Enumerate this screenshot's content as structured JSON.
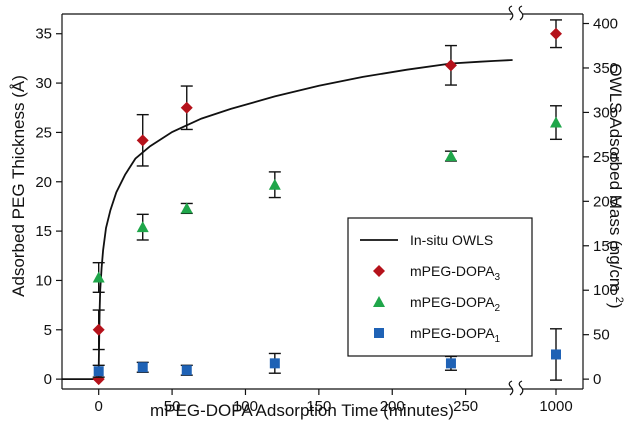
{
  "chart_data": {
    "type": "scatter",
    "xlabel": "mPEG-DOPA Adsorption Time (minutes)",
    "ylabel": "Adsorbed PEG Thickness (Å)",
    "ylabel2": "OWLS Adsorbed Mass (ng/cm²)",
    "xlim": [
      -25,
      285
    ],
    "x_break": {
      "after": 285,
      "extra_tick": 1000,
      "extra_tick_label": "1000"
    },
    "ylim": [
      -1,
      37
    ],
    "ylim2": [
      -11.1,
      410.7
    ],
    "x_ticks": [
      0,
      50,
      100,
      150,
      200,
      250
    ],
    "y_ticks": [
      0,
      5,
      10,
      15,
      20,
      25,
      30,
      35
    ],
    "y2_ticks": [
      0,
      50,
      100,
      150,
      200,
      250,
      300,
      350,
      400
    ],
    "legend": {
      "placement": "center-right",
      "entries": [
        {
          "label": "In-situ OWLS",
          "sub": ""
        },
        {
          "label": "mPEG-DOPA",
          "sub": "3"
        },
        {
          "label": "mPEG-DOPA",
          "sub": "2"
        },
        {
          "label": "mPEG-DOPA",
          "sub": "1"
        }
      ]
    },
    "series": [
      {
        "name": "In-situ OWLS",
        "kind": "line",
        "color": "#111111",
        "axis": "right",
        "x": [
          -25,
          -10,
          -4,
          -2,
          -1,
          0,
          0.3,
          0.7,
          1,
          2,
          3,
          5,
          8,
          12,
          18,
          25,
          35,
          50,
          70,
          90,
          120,
          150,
          180,
          210,
          240,
          260,
          270,
          282
        ],
        "y": [
          0,
          0,
          0,
          1,
          3,
          10,
          40,
          80,
          100,
          125,
          145,
          170,
          190,
          210,
          230,
          248,
          262,
          278,
          293,
          304,
          318,
          330,
          340,
          348,
          355,
          357,
          358,
          359
        ]
      },
      {
        "name": "mPEG-DOPA3",
        "kind": "points",
        "marker": "diamond",
        "color": "#b5121b",
        "axis": "left",
        "x": [
          0,
          0,
          30,
          60,
          240,
          1000
        ],
        "y": [
          0,
          5,
          24.2,
          27.5,
          31.8,
          35
        ],
        "err": [
          0,
          2,
          2.6,
          2.2,
          2.0,
          1.4
        ]
      },
      {
        "name": "mPEG-DOPA2",
        "kind": "points",
        "marker": "triangle",
        "color": "#1fa64a",
        "axis": "left",
        "x": [
          0,
          30,
          60,
          120,
          240,
          1000
        ],
        "y": [
          10.3,
          15.4,
          17.3,
          19.7,
          22.6,
          26.0
        ],
        "err": [
          1.5,
          1.3,
          0.5,
          1.3,
          0.5,
          1.7
        ]
      },
      {
        "name": "mPEG-DOPA1",
        "kind": "points",
        "marker": "square",
        "color": "#1f62b5",
        "axis": "left",
        "x": [
          0,
          30,
          60,
          120,
          240,
          1000
        ],
        "y": [
          0.8,
          1.2,
          0.9,
          1.6,
          1.6,
          2.5
        ],
        "err": [
          0.6,
          0.5,
          0.5,
          1.0,
          0.7,
          2.6
        ]
      }
    ]
  }
}
